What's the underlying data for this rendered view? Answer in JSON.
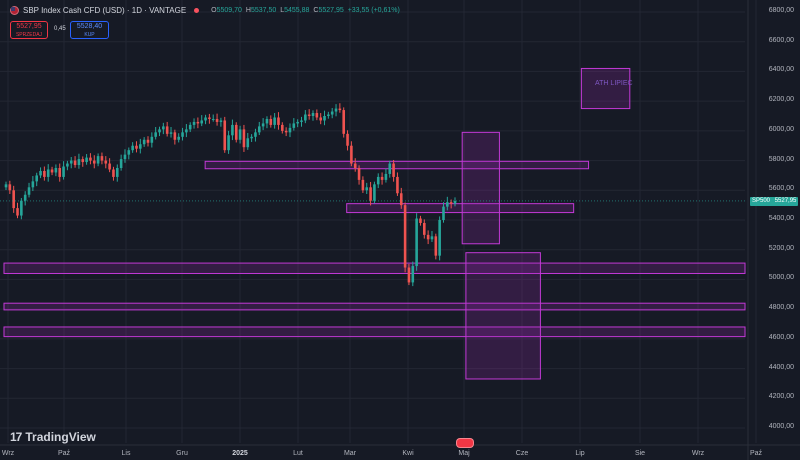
{
  "header": {
    "symbol_title": "SBP Index Cash CFD (USD) · 1D · VANTAGE",
    "open_label": "O",
    "open": "5509,70",
    "high_label": "H",
    "high": "5537,50",
    "low_label": "L",
    "low": "5455,88",
    "close_label": "C",
    "close": "5527,95",
    "change": "+33,55 (+0,61%)"
  },
  "trade": {
    "sell_price": "5527,95",
    "sell_label": "SPRZEDAJ",
    "spread": "0,45",
    "buy_price": "5528,40",
    "buy_label": "KUP"
  },
  "price_axis": [
    "6800,00",
    "6600,00",
    "6400,00",
    "6200,00",
    "6000,00",
    "5800,00",
    "5600,00",
    "5400,00",
    "5200,00",
    "5000,00",
    "4800,00",
    "4600,00",
    "4400,00",
    "4200,00",
    "4000,00"
  ],
  "current_tag": {
    "symbol": "SP500",
    "price": "5527,95"
  },
  "time_axis": [
    {
      "label": "Wrz",
      "bold": false
    },
    {
      "label": "Paź",
      "bold": false
    },
    {
      "label": "Lis",
      "bold": false
    },
    {
      "label": "Gru",
      "bold": false
    },
    {
      "label": "2025",
      "bold": true
    },
    {
      "label": "Lut",
      "bold": false
    },
    {
      "label": "Mar",
      "bold": false
    },
    {
      "label": "Kwi",
      "bold": false
    },
    {
      "label": "Maj",
      "bold": false
    },
    {
      "label": "Cze",
      "bold": false
    },
    {
      "label": "Lip",
      "bold": false
    },
    {
      "label": "Sie",
      "bold": false
    },
    {
      "label": "Wrz",
      "bold": false
    },
    {
      "label": "Paź",
      "bold": false
    }
  ],
  "annotation": {
    "ath_label": "ATH LIPIEC"
  },
  "brand": {
    "name": "TradingView"
  },
  "colors": {
    "background": "#161a25",
    "up": "#26a69a",
    "down": "#ef5350",
    "zone_fill": "rgba(156,39,176,0.22)",
    "zone_stroke": "#c239d6"
  },
  "chart_data": {
    "type": "candlestick",
    "series_name": "SP500",
    "ylim": [
      4000,
      6800
    ],
    "closes": [
      5640,
      5600,
      5480,
      5430,
      5530,
      5570,
      5620,
      5660,
      5700,
      5730,
      5690,
      5740,
      5720,
      5750,
      5690,
      5760,
      5780,
      5800,
      5770,
      5810,
      5790,
      5820,
      5800,
      5780,
      5830,
      5800,
      5780,
      5740,
      5690,
      5750,
      5810,
      5840,
      5870,
      5900,
      5880,
      5910,
      5940,
      5920,
      5960,
      5990,
      6010,
      6030,
      5980,
      5990,
      5940,
      5960,
      5990,
      6010,
      6040,
      6060,
      6050,
      6070,
      6090,
      6080,
      6080,
      6060,
      6070,
      5870,
      5970,
      6040,
      5940,
      6010,
      5890,
      5950,
      5960,
      5990,
      6030,
      6050,
      6080,
      6040,
      6090,
      6040,
      6000,
      5990,
      6020,
      6050,
      6060,
      6070,
      6110,
      6100,
      6120,
      6090,
      6070,
      6100,
      6110,
      6130,
      6150,
      6140,
      5980,
      5900,
      5780,
      5750,
      5670,
      5600,
      5620,
      5530,
      5640,
      5690,
      5670,
      5710,
      5780,
      5690,
      5580,
      5500,
      5080,
      4980,
      5090,
      5410,
      5380,
      5300,
      5270,
      5290,
      5160,
      5400,
      5490,
      5520,
      5510,
      5528
    ],
    "zones": [
      {
        "y1": 5795,
        "y2": 5745,
        "x_frac": [
          0.27,
          0.79
        ]
      },
      {
        "y1": 5510,
        "y2": 5450,
        "x_frac": [
          0.46,
          0.77
        ]
      },
      {
        "y1": 5110,
        "y2": 5040,
        "x_frac": [
          0.0,
          1.0
        ]
      },
      {
        "y1": 4840,
        "y2": 4795,
        "x_frac": [
          0.0,
          1.0
        ]
      },
      {
        "y1": 4680,
        "y2": 4615,
        "x_frac": [
          0.0,
          1.0
        ]
      }
    ],
    "boxes": [
      {
        "y1": 5990,
        "y2": 5240,
        "x_frac": [
          0.615,
          0.665
        ]
      },
      {
        "y1": 5180,
        "y2": 4330,
        "x_frac": [
          0.62,
          0.72
        ]
      },
      {
        "y1": 6420,
        "y2": 6150,
        "x_frac": [
          0.775,
          0.84
        ]
      }
    ]
  }
}
